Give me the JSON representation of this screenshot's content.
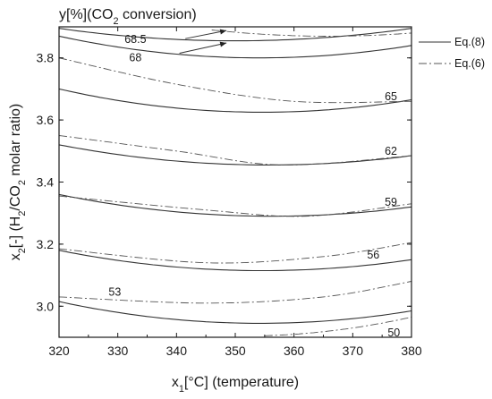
{
  "chart_data": {
    "type": "line",
    "title": "",
    "xlabel": {
      "main": "x",
      "sub": "1",
      "rest": "[°C] (temperature)"
    },
    "ylabel": {
      "parts": [
        {
          "t": "x"
        },
        {
          "t": "2",
          "sub": true
        },
        {
          "t": "[-] (H"
        },
        {
          "t": "2",
          "sub": true
        },
        {
          "t": "/CO"
        },
        {
          "t": "2",
          "sub": true
        },
        {
          "t": " molar ratio)"
        }
      ]
    },
    "top_label": {
      "parts": [
        {
          "t": "y[%](CO"
        },
        {
          "t": "2",
          "sub": true
        },
        {
          "t": " conversion)"
        }
      ]
    },
    "xlim": [
      320,
      380
    ],
    "ylim": [
      2.9,
      3.9
    ],
    "xticks": [
      320,
      330,
      340,
      350,
      360,
      370,
      380
    ],
    "yticks": [
      3.0,
      3.2,
      3.4,
      3.6,
      3.8
    ],
    "ytick_labels": [
      "3.0",
      "3.2",
      "3.4",
      "3.6",
      "3.8"
    ],
    "grid": false,
    "legend_position": "right",
    "legend": [
      {
        "label": "Eq.(8)",
        "style": "solid"
      },
      {
        "label": "Eq.(6)",
        "style": "dashdot"
      }
    ],
    "series": [
      {
        "name": "Eq.(8)",
        "style": "solid",
        "contours": [
          {
            "level": "68.5",
            "points": [
              [
                320,
                3.895
              ],
              [
                350,
                3.855
              ],
              [
                380,
                3.895
              ]
            ]
          },
          {
            "level": "68",
            "points": [
              [
                320,
                3.87
              ],
              [
                355,
                3.8
              ],
              [
                380,
                3.84
              ]
            ]
          },
          {
            "level": "65",
            "points": [
              [
                320,
                3.7
              ],
              [
                354,
                3.625
              ],
              [
                380,
                3.665
              ]
            ]
          },
          {
            "level": "62",
            "points": [
              [
                320,
                3.52
              ],
              [
                356,
                3.455
              ],
              [
                380,
                3.485
              ]
            ]
          },
          {
            "level": "59",
            "points": [
              [
                320,
                3.36
              ],
              [
                357,
                3.29
              ],
              [
                380,
                3.32
              ]
            ]
          },
          {
            "level": "56",
            "points": [
              [
                320,
                3.18
              ],
              [
                357,
                3.115
              ],
              [
                380,
                3.15
              ]
            ]
          },
          {
            "level": "53",
            "points": [
              [
                320,
                3.015
              ],
              [
                355,
                2.945
              ],
              [
                380,
                2.985
              ]
            ]
          }
        ]
      },
      {
        "name": "Eq.(6)",
        "style": "dashdot",
        "contours": [
          {
            "level": "68.5",
            "points": [
              [
                346,
                3.89
              ],
              [
                364,
                3.87
              ],
              [
                380,
                3.88
              ]
            ]
          },
          {
            "level": "68",
            "points": [
              [
                320,
                3.8
              ],
              [
                340,
                3.715
              ],
              [
                360,
                3.66
              ],
              [
                380,
                3.66
              ]
            ]
          },
          {
            "level": "65",
            "points": [
              [
                320,
                3.55
              ],
              [
                340,
                3.5
              ],
              [
                358,
                3.455
              ],
              [
                380,
                3.485
              ]
            ]
          },
          {
            "level": "62",
            "points": [
              [
                320,
                3.355
              ],
              [
                345,
                3.31
              ],
              [
                362,
                3.29
              ],
              [
                380,
                3.33
              ]
            ]
          },
          {
            "level": "59",
            "points": [
              [
                320,
                3.185
              ],
              [
                345,
                3.14
              ],
              [
                365,
                3.16
              ],
              [
                380,
                3.205
              ]
            ]
          },
          {
            "level": "56",
            "points": [
              [
                320,
                3.03
              ],
              [
                345,
                3.01
              ],
              [
                365,
                3.03
              ],
              [
                380,
                3.08
              ]
            ]
          },
          {
            "level": "53",
            "points": [
              [
                355,
                2.905
              ],
              [
                370,
                2.93
              ],
              [
                380,
                2.965
              ]
            ]
          }
        ]
      }
    ],
    "contour_labels": [
      {
        "text": "68.5",
        "x": 333,
        "y": 3.86
      },
      {
        "text": "68",
        "x": 333,
        "y": 3.8
      },
      {
        "text": "65",
        "x": 376.5,
        "y": 3.675
      },
      {
        "text": "62",
        "x": 376.5,
        "y": 3.5
      },
      {
        "text": "59",
        "x": 376.5,
        "y": 3.335
      },
      {
        "text": "56",
        "x": 373.5,
        "y": 3.165
      },
      {
        "text": "53",
        "x": 329.5,
        "y": 3.045
      },
      {
        "text": "50",
        "x": 377,
        "y": 2.915
      }
    ],
    "annotations": [
      {
        "type": "arrow",
        "from": [
          341.5,
          3.862
        ],
        "to": [
          348.5,
          3.888
        ]
      },
      {
        "type": "arrow",
        "from": [
          340.5,
          3.815
        ],
        "to": [
          348.5,
          3.848
        ]
      }
    ]
  }
}
